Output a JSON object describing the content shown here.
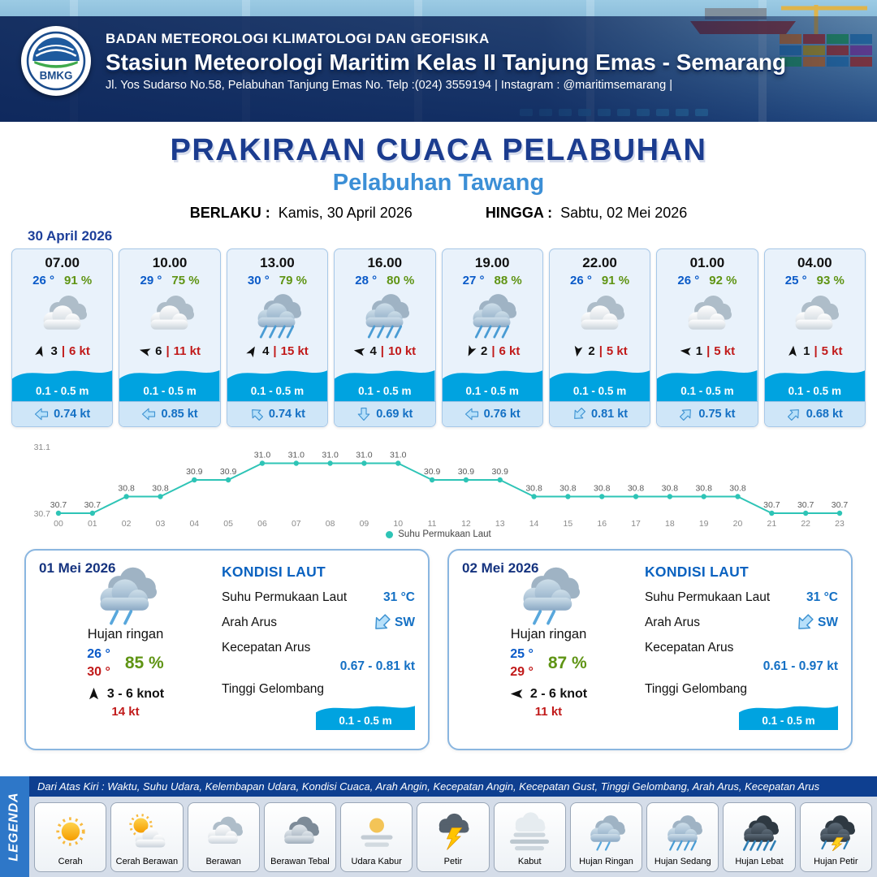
{
  "header": {
    "logo_text": "BMKG",
    "agency": "BADAN METEOROLOGI KLIMATOLOGI DAN GEOFISIKA",
    "station": "Stasiun Meteorologi Maritim Kelas II Tanjung Emas - Semarang",
    "address": "Jl. Yos Sudarso No.58, Pelabuhan Tanjung Emas No. Telp :(024) 3559194 | Instagram : @maritimsemarang |"
  },
  "title": {
    "main": "PRAKIRAAN CUACA PELABUHAN",
    "sub": "Pelabuhan Tawang",
    "valid_from_label": "BERLAKU :",
    "valid_from": "Kamis, 30 April 2026",
    "valid_to_label": "HINGGA :",
    "valid_to": "Sabtu, 02 Mei 2026"
  },
  "forecast": {
    "date": "30 April 2026",
    "cards": [
      {
        "time": "07.00",
        "temp": "26 °",
        "humidity": "91 %",
        "icon": "berawan",
        "wind_dir_deg": 15,
        "wind_speed": "3",
        "gust": "6 kt",
        "wave": "0.1 - 0.5 m",
        "current_dir_deg": 270,
        "current": "0.74 kt"
      },
      {
        "time": "10.00",
        "temp": "29 °",
        "humidity": "75 %",
        "icon": "berawan",
        "wind_dir_deg": 285,
        "wind_speed": "6",
        "gust": "11 kt",
        "wave": "0.1 - 0.5 m",
        "current_dir_deg": 270,
        "current": "0.85 kt"
      },
      {
        "time": "13.00",
        "temp": "30 °",
        "humidity": "79 %",
        "icon": "hujan-sedang",
        "wind_dir_deg": 30,
        "wind_speed": "4",
        "gust": "15 kt",
        "wave": "0.1 - 0.5 m",
        "current_dir_deg": 315,
        "current": "0.74 kt"
      },
      {
        "time": "16.00",
        "temp": "28 °",
        "humidity": "80 %",
        "icon": "hujan-sedang",
        "wind_dir_deg": 280,
        "wind_speed": "4",
        "gust": "10 kt",
        "wave": "0.1 - 0.5 m",
        "current_dir_deg": 180,
        "current": "0.69 kt"
      },
      {
        "time": "19.00",
        "temp": "27 °",
        "humidity": "88 %",
        "icon": "hujan-sedang",
        "wind_dir_deg": 205,
        "wind_speed": "2",
        "gust": "6 kt",
        "wave": "0.1 - 0.5 m",
        "current_dir_deg": 270,
        "current": "0.76 kt"
      },
      {
        "time": "22.00",
        "temp": "26 °",
        "humidity": "91 %",
        "icon": "berawan",
        "wind_dir_deg": 190,
        "wind_speed": "2",
        "gust": "5 kt",
        "wave": "0.1 - 0.5 m",
        "current_dir_deg": 225,
        "current": "0.81 kt"
      },
      {
        "time": "01.00",
        "temp": "26 °",
        "humidity": "92 %",
        "icon": "berawan",
        "wind_dir_deg": 275,
        "wind_speed": "1",
        "gust": "5 kt",
        "wave": "0.1 - 0.5 m",
        "current_dir_deg": 45,
        "current": "0.75 kt"
      },
      {
        "time": "04.00",
        "temp": "25 °",
        "humidity": "93 %",
        "icon": "berawan",
        "wind_dir_deg": 5,
        "wind_speed": "1",
        "gust": "5 kt",
        "wave": "0.1 - 0.5 m",
        "current_dir_deg": 45,
        "current": "0.68 kt"
      }
    ]
  },
  "chart_data": {
    "type": "line",
    "title": "",
    "series_name": "Suhu Permukaan Laut",
    "x": [
      "00",
      "01",
      "02",
      "03",
      "04",
      "05",
      "06",
      "07",
      "08",
      "09",
      "10",
      "11",
      "12",
      "13",
      "14",
      "15",
      "16",
      "17",
      "18",
      "19",
      "20",
      "21",
      "22",
      "23"
    ],
    "values": [
      30.7,
      30.7,
      30.8,
      30.8,
      30.9,
      30.9,
      31.0,
      31.0,
      31.0,
      31.0,
      31.0,
      30.9,
      30.9,
      30.9,
      30.8,
      30.8,
      30.8,
      30.8,
      30.8,
      30.8,
      30.8,
      30.7,
      30.7,
      30.7
    ],
    "ylim": [
      30.7,
      31.1
    ],
    "xlabel": "",
    "ylabel": "",
    "line_color": "#2ec4b6",
    "grid": false,
    "legend_position": "bottom"
  },
  "daily": [
    {
      "date": "01 Mei 2026",
      "icon": "hujan-ringan",
      "condition": "Hujan ringan",
      "temp_min": "26 °",
      "temp_max": "30 °",
      "humidity": "85 %",
      "wind_dir_deg": 0,
      "wind_range": "3 - 6 knot",
      "gust": "14 kt",
      "sea_title": "KONDISI LAUT",
      "sst_label": "Suhu Permukaan Laut",
      "sst": "31 °C",
      "current_dir_label": "Arah Arus",
      "current_dir": "SW",
      "current_dir_deg": 225,
      "current_speed_label": "Kecepatan Arus",
      "current_speed": "0.67 - 0.81 kt",
      "wave_label": "Tinggi Gelombang",
      "wave": "0.1 - 0.5 m"
    },
    {
      "date": "02 Mei 2026",
      "icon": "hujan-ringan",
      "condition": "Hujan ringan",
      "temp_min": "25 °",
      "temp_max": "29 °",
      "humidity": "87 %",
      "wind_dir_deg": 270,
      "wind_range": "2 - 6 knot",
      "gust": "11 kt",
      "sea_title": "KONDISI LAUT",
      "sst_label": "Suhu Permukaan Laut",
      "sst": "31 °C",
      "current_dir_label": "Arah Arus",
      "current_dir": "SW",
      "current_dir_deg": 225,
      "current_speed_label": "Kecepatan Arus",
      "current_speed": "0.61 - 0.97 kt",
      "wave_label": "Tinggi Gelombang",
      "wave": "0.1 - 0.5 m"
    }
  ],
  "legend": {
    "side_label": "LEGENDA",
    "note": "Dari Atas Kiri : Waktu, Suhu Udara, Kelembapan Udara, Kondisi Cuaca, Arah Angin, Kecepatan Angin, Kecepatan Gust, Tinggi Gelombang, Arah Arus, Kecepatan Arus",
    "items": [
      {
        "label": "Cerah",
        "icon": "cerah"
      },
      {
        "label": "Cerah Berawan",
        "icon": "cerah-berawan"
      },
      {
        "label": "Berawan",
        "icon": "berawan"
      },
      {
        "label": "Berawan Tebal",
        "icon": "berawan-tebal"
      },
      {
        "label": "Udara Kabur",
        "icon": "udara-kabur"
      },
      {
        "label": "Petir",
        "icon": "petir"
      },
      {
        "label": "Kabut",
        "icon": "kabut"
      },
      {
        "label": "Hujan Ringan",
        "icon": "hujan-ringan"
      },
      {
        "label": "Hujan Sedang",
        "icon": "hujan-sedang"
      },
      {
        "label": "Hujan Lebat",
        "icon": "hujan-lebat"
      },
      {
        "label": "Hujan Petir",
        "icon": "hujan-petir"
      }
    ]
  },
  "colors": {
    "accent_navy": "#1b3c8f",
    "accent_blue": "#3c8fd6",
    "temp_blue": "#0a5ac8",
    "humidity_green": "#5f9414",
    "gust_red": "#c11a1a",
    "wave_blue": "#00a3e0",
    "sst_line": "#2ec4b6"
  }
}
